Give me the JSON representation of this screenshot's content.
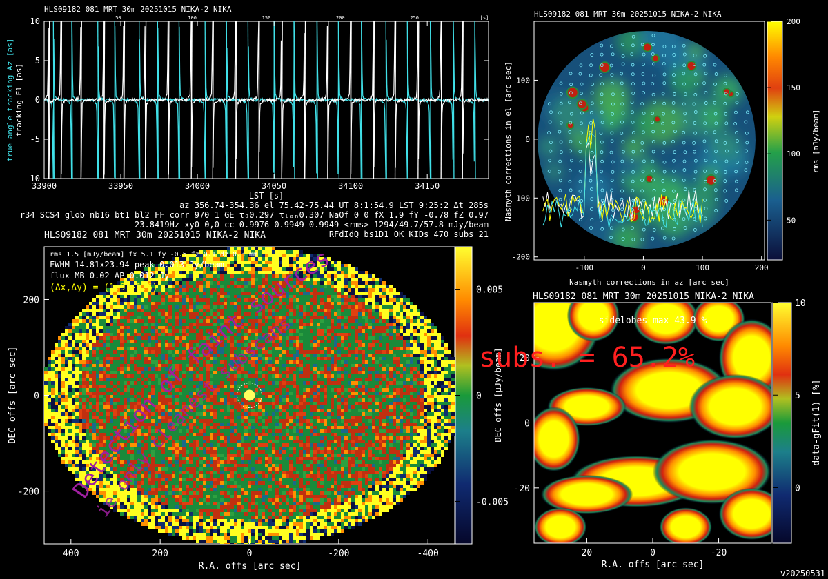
{
  "version_label": "v20250531",
  "colors": {
    "white": "#ffffff",
    "cyan": "#40e0e8",
    "red": "#ff2020",
    "magenta": "#a020a0",
    "yellow": "#ffff00",
    "green": "#1a8a3a",
    "navy": "#101850"
  },
  "chart_data": [
    {
      "type": "line",
      "id": "tracking",
      "title": "HLS09182 081 MRT 30m  20251015 NIKA-2 NIKA",
      "xlabel": "LST [s]",
      "ylabel_el": "tracking El [as]",
      "ylabel_az": "true angle tracking Az [as]",
      "xlim": [
        33900,
        34190
      ],
      "ylim": [
        -10,
        10
      ],
      "xticks": [
        33900,
        33950,
        34000,
        34050,
        34100,
        34150
      ],
      "yticks": [
        -10,
        -5,
        0,
        5,
        10
      ],
      "top_ticks": [
        "50",
        "100",
        "150",
        "200",
        "250",
        "[s]"
      ],
      "series": [
        {
          "color": "cyan",
          "spike_times": [
            33906,
            33918,
            33935,
            33946,
            33962,
            33974,
            33988,
            34005,
            34019,
            34033,
            34050,
            34063,
            34078,
            34092,
            34107,
            34123,
            34137,
            34152,
            34167,
            34181
          ]
        },
        {
          "color": "white",
          "spike_times": [
            33903,
            33911,
            33924,
            33939,
            33952,
            33966,
            33981,
            33996,
            34010,
            34025,
            34040,
            34055,
            34070,
            34085,
            34100,
            34115,
            34129,
            34144,
            34159,
            34173
          ]
        }
      ],
      "info_lines": [
        "az 356.74-354.36 el 75.42-75.44 UT 8:1:54.9 LST 9:25:2 Δt 285s",
        "r34 SCS4 glob nb16 bt1 bl2 FF corr 970 1 GE τ₀0.297 τₗₐₙ0.307 NaOf 0 0 fX 1.9 fY -0.78 fZ 0.97",
        "23.8419Hz xy0 0,0 cc 0.9976 0.9949 0.9949 <rms> 1294/49.7/57.8 mJy/beam",
        "RFdIdQ bs1D1 OK KIDs 470 subs 21"
      ]
    },
    {
      "type": "heatmap",
      "id": "nasmyth",
      "title": "HLS09182 081 MRT 30m  20251015 NIKA-2 NIKA",
      "xlabel": "Nasmyth corrections in az [arc sec]",
      "ylabel": "Nasmyth corrections in el [arc sec]",
      "xlim": [
        -185,
        205
      ],
      "ylim": [
        -205,
        200
      ],
      "xticks": [
        -100,
        0,
        100,
        200
      ],
      "yticks": [
        -200,
        -100,
        0,
        100
      ],
      "colorbar": {
        "label": "rms [mJy/beam]",
        "range": [
          20,
          200
        ],
        "ticks": [
          50,
          100,
          150,
          200
        ]
      }
    },
    {
      "type": "heatmap",
      "id": "map",
      "title": "HLS09182 081 MRT 30m  20251015 NIKA-2 NIKA",
      "xlabel": "R.A. offs [arc sec]",
      "ylabel": "DEC offs [arc sec]",
      "xlim": [
        460,
        -460
      ],
      "ylim": [
        -310,
        310
      ],
      "xticks": [
        400,
        200,
        0,
        -200,
        -400
      ],
      "yticks": [
        -200,
        0,
        200
      ],
      "colorbar": {
        "label": "DEC offs [μJy/beam]",
        "range": [
          -0.007,
          0.007
        ],
        "ticks": [
          -0.005,
          0,
          0.005
        ],
        "tick_labels": [
          "-0.005",
          "0",
          "0.005"
        ]
      },
      "annotations": [
        "rms 1.5 [mJy/beam] fx 5.1 fy -0.5 fz 0.1 dz 0.3 mm",
        "FWHM 14.81x23.94 peak 0.013 Jy/beam",
        "flux MB 0.02 AP 0.012 Jy",
        "(Δx,Δy) = (1.9,-1.6)"
      ]
    },
    {
      "type": "heatmap",
      "id": "residual",
      "title": "HLS09182 081 MRT 30m  20251015 NIKA-2 NIKA",
      "xlabel": "R.A. offs [arc sec]",
      "ylabel": "DEC offs",
      "xlim": [
        36,
        -36
      ],
      "ylim": [
        -37,
        37
      ],
      "xticks": [
        20,
        0,
        -20
      ],
      "yticks": [
        -20,
        0,
        20
      ],
      "annotation": "sidelobes max 43.9 %",
      "colorbar": {
        "label": "data-gFit(1) [%]",
        "range": [
          -3,
          10
        ],
        "ticks": [
          0,
          5,
          10
        ]
      }
    }
  ],
  "overlays": {
    "subs_text": "subs. = 65.2%",
    "arc_text": "Detection of faint sources",
    "arc_text2": "ie only cleanest subscans"
  }
}
